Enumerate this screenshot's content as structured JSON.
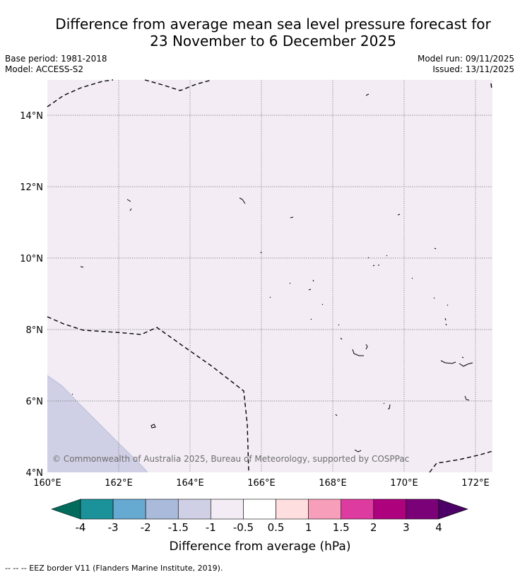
{
  "title_line1": "Difference from average mean sea level pressure forecast for",
  "title_line2": "23 November to 6 December 2025",
  "base_period": "Base period: 1981-2018",
  "model": "Model: ACCESS-S2",
  "model_run": "Model run: 09/11/2025",
  "issued": "Issued: 13/11/2025",
  "copyright": "© Commonwealth of Australia 2025, Bureau of Meteorology, supported by COSPPac",
  "eez_note": "--  --  -- EEZ border V11 (Flanders Marine Institute, 2019).",
  "colors": {
    "background_field": "#f3ecf5",
    "low_anomaly_region": "#cfd0e5",
    "eez_line": "#000000",
    "grid": "#555555"
  },
  "map": {
    "lon_range": [
      160,
      172.5
    ],
    "lat_range": [
      4,
      15
    ],
    "lon_ticks": [
      "160°E",
      "162°E",
      "164°E",
      "166°E",
      "168°E",
      "170°E",
      "172°E"
    ],
    "lat_ticks": [
      "4°N",
      "6°N",
      "8°N",
      "10°N",
      "12°N",
      "14°N"
    ]
  },
  "colorbar": {
    "title": "Difference from average (hPa)",
    "tick_labels": [
      "-4",
      "-3",
      "-2",
      "-1.5",
      "-1",
      "-0.5",
      "0.5",
      "1",
      "1.5",
      "2",
      "3",
      "4"
    ],
    "under_color": "#036b5c",
    "over_color": "#4c0067",
    "colors": [
      "#1b9199",
      "#66a9d1",
      "#a9badb",
      "#cfd0e5",
      "#f3ecf5",
      "#ffffff",
      "#fedede",
      "#f79fba",
      "#de3ba0",
      "#ae017e",
      "#7a0177"
    ]
  }
}
